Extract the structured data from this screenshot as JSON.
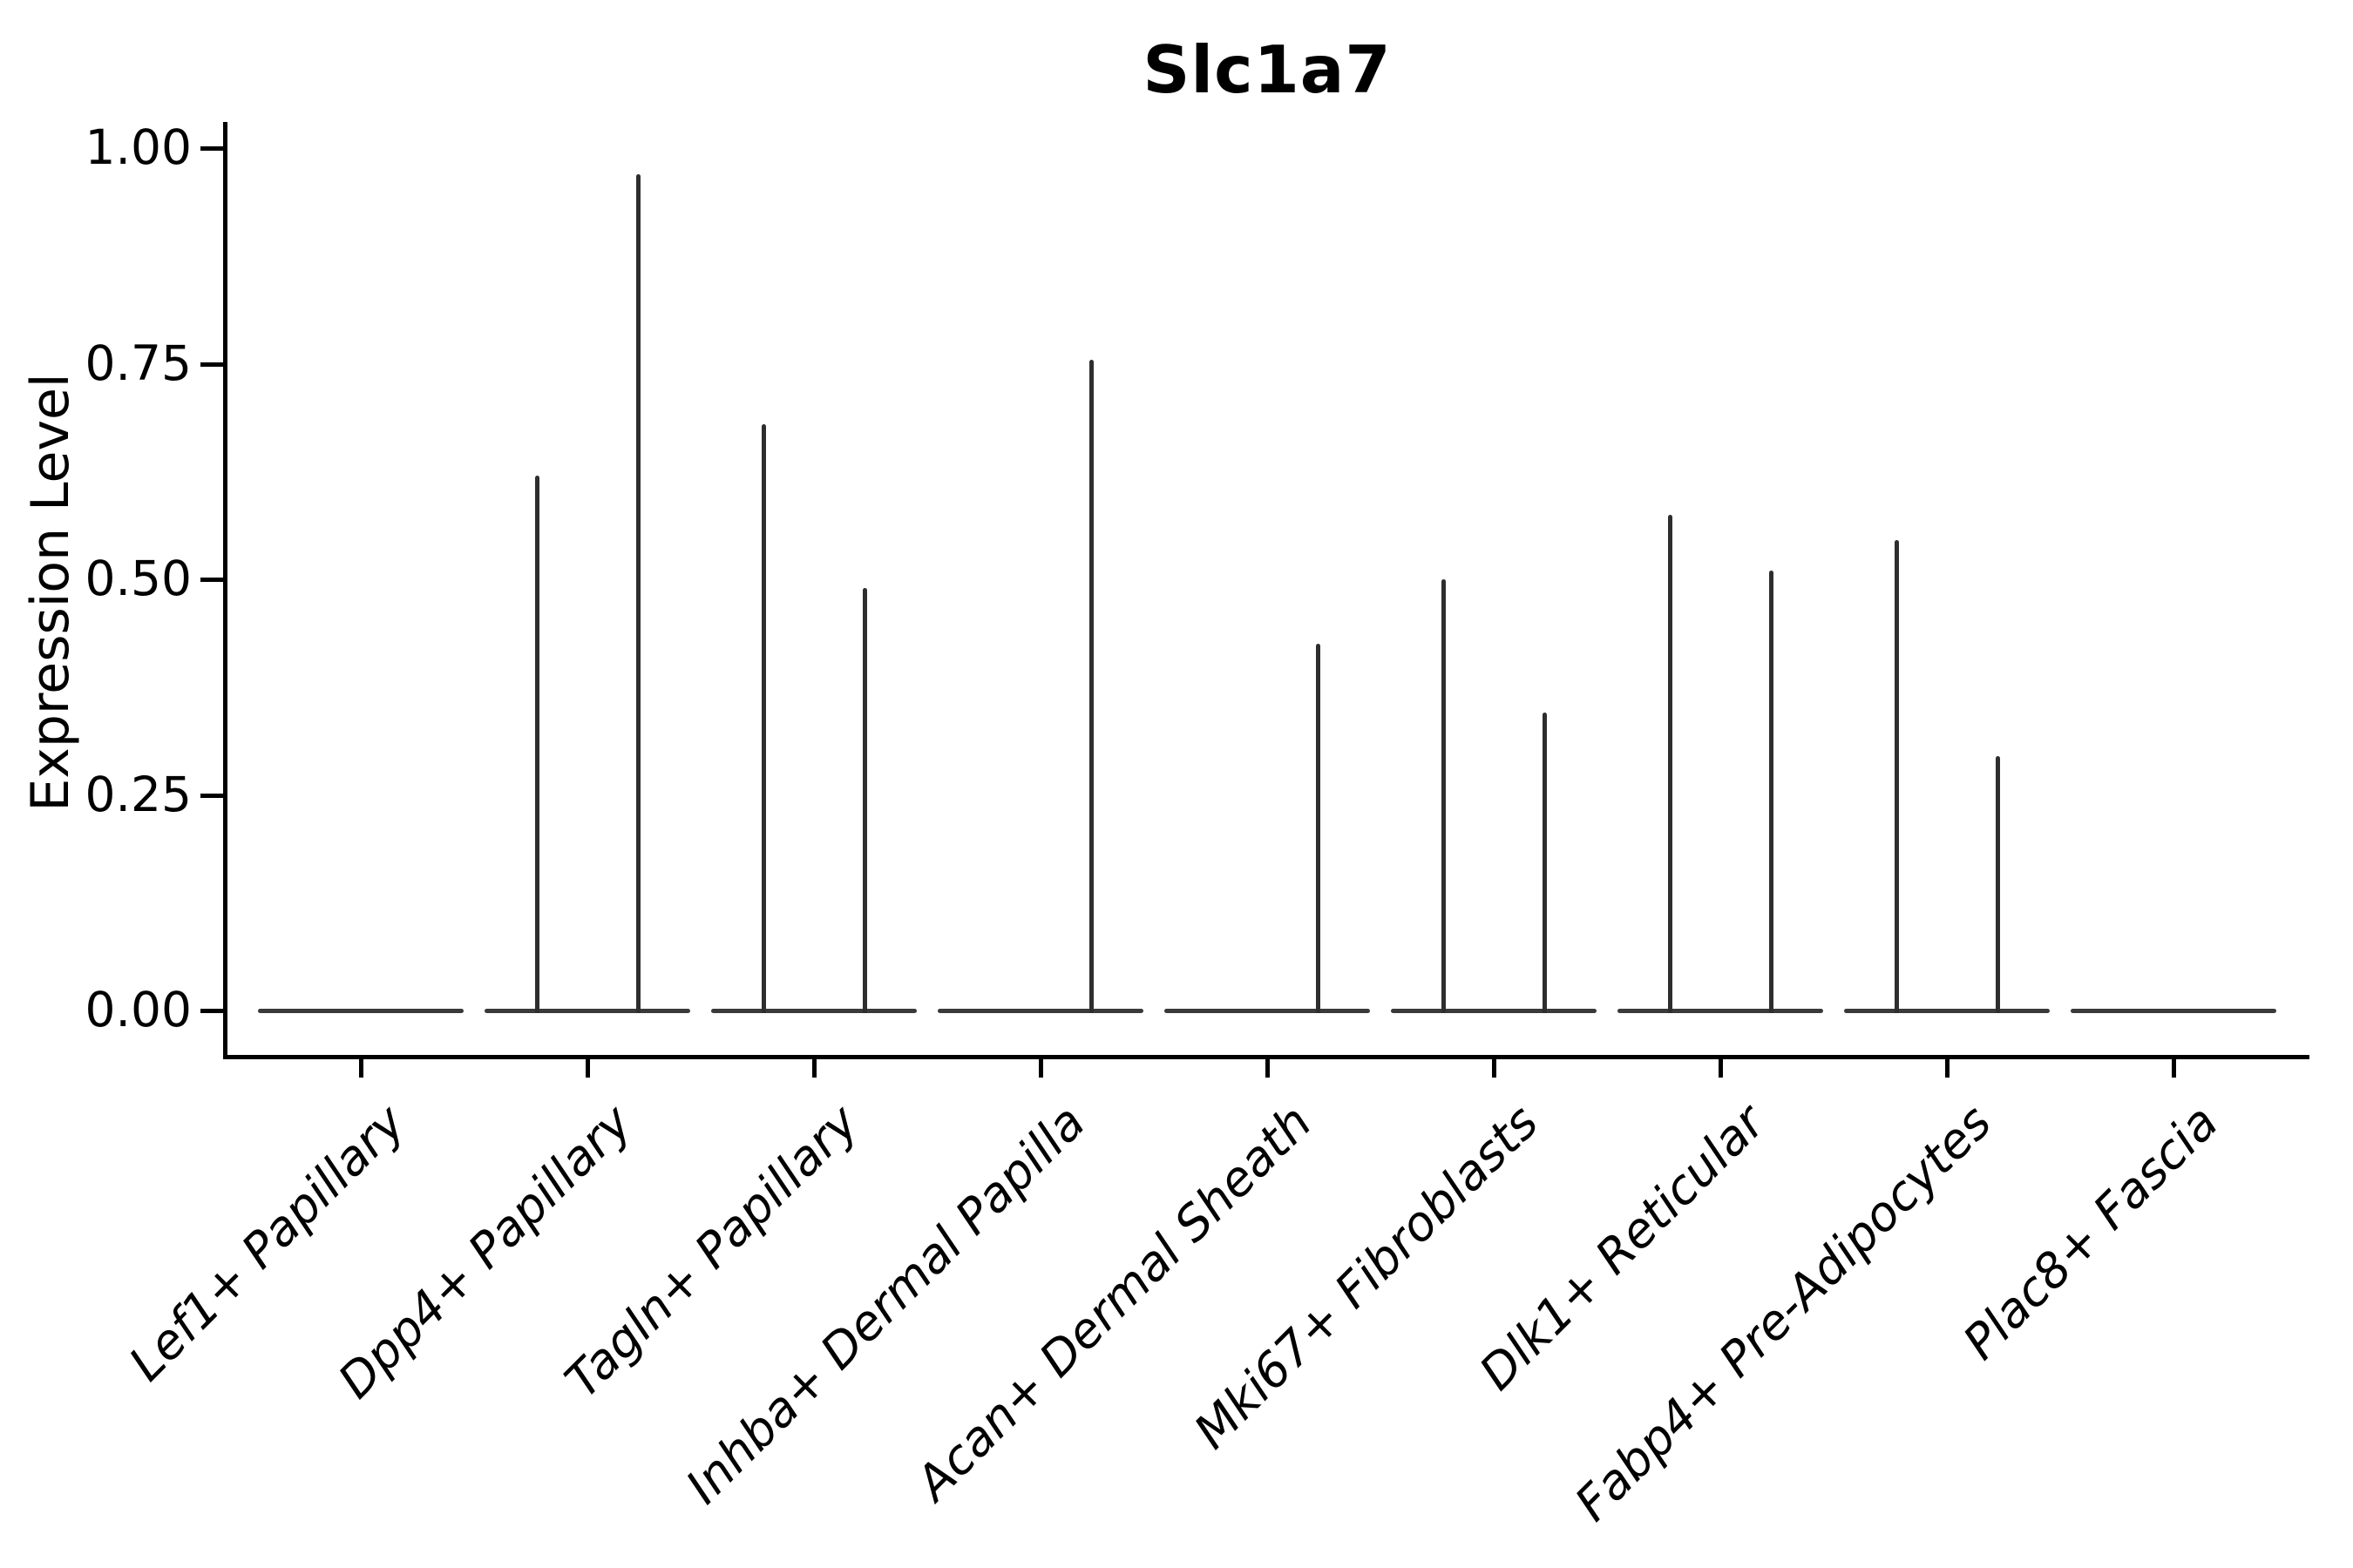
{
  "figure": {
    "title": "Slc1a7",
    "y_axis": {
      "label": "Expression Level",
      "tick_labels": [
        "0.00",
        "0.25",
        "0.50",
        "0.75",
        "1.00"
      ]
    },
    "x_axis": {
      "tick_labels": [
        "Lef1+ Papillary",
        "Dpp4+ Papillary",
        "Tagln+ Papillary",
        "Inhba+ Dermal Papilla",
        "Acan+ Dermal Sheath",
        "Mki67+ Fibroblasts",
        "Dlk1+ Reticular",
        "Fabp4+ Pre-Adipocytes",
        "Plac8+ Fascia"
      ]
    }
  },
  "chart_data": {
    "type": "violin",
    "title": "Slc1a7",
    "xlabel": "",
    "ylabel": "Expression Level",
    "ylim": [
      0.0,
      1.0
    ],
    "y_ticks": [
      0.0,
      0.25,
      0.5,
      0.75,
      1.0
    ],
    "grid": false,
    "legend_position": "none",
    "stroke_color": "#2e2e2e",
    "categories": [
      "Lef1+ Papillary",
      "Dpp4+ Papillary",
      "Tagln+ Papillary",
      "Inhba+ Dermal Papilla",
      "Acan+ Dermal Sheath",
      "Mki67+ Fibroblasts",
      "Dlk1+ Reticular",
      "Fabp4+ Pre-Adipocytes",
      "Plac8+ Fascia"
    ],
    "series": [
      {
        "name": "left-violin",
        "max_expression": [
          0,
          0.62,
          0.68,
          0,
          0,
          0.5,
          0.575,
          0.545,
          0
        ]
      },
      {
        "name": "right-violin",
        "max_expression": [
          0,
          0.97,
          0.49,
          0.755,
          0.425,
          0.345,
          0.51,
          0.295,
          0
        ]
      }
    ]
  }
}
